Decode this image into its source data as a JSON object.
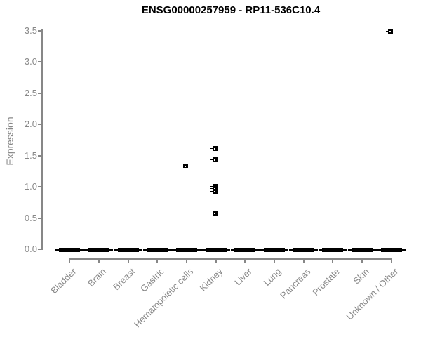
{
  "chart_data": {
    "type": "scatter",
    "subtype": "strip-plot",
    "title": "ENSG00000257959 - RP11-536C10.4",
    "xlabel": "",
    "ylabel": "Expression",
    "ylim": [
      0.0,
      3.5
    ],
    "yticks": [
      0.0,
      0.5,
      1.0,
      1.5,
      2.0,
      2.5,
      3.0,
      3.5
    ],
    "categories": [
      "Bladder",
      "Brain",
      "Breast",
      "Gastric",
      "Hematopoietic cells",
      "Kidney",
      "Liver",
      "Lung",
      "Pancreas",
      "Prostate",
      "Skin",
      "Unknown / Other"
    ],
    "zero_clusters": {
      "note": "dense overlapping cluster of samples at expression ~0 in every category",
      "value": 0.0,
      "categories": [
        "Bladder",
        "Brain",
        "Breast",
        "Gastric",
        "Hematopoietic cells",
        "Kidney",
        "Liver",
        "Lung",
        "Pancreas",
        "Prostate",
        "Skin",
        "Unknown / Other"
      ]
    },
    "nonzero_points": [
      {
        "category": "Hematopoietic cells",
        "values": [
          1.33
        ]
      },
      {
        "category": "Kidney",
        "values": [
          1.61,
          1.43,
          1.01,
          0.97,
          0.93,
          0.58
        ]
      },
      {
        "category": "Unknown / Other",
        "values": [
          3.5
        ]
      }
    ],
    "marker": {
      "shape": "small-square",
      "color": "#000000"
    },
    "axis_color": "#878787",
    "label_color": "#888888",
    "title_color": "#000000",
    "grid": false,
    "legend": null
  }
}
